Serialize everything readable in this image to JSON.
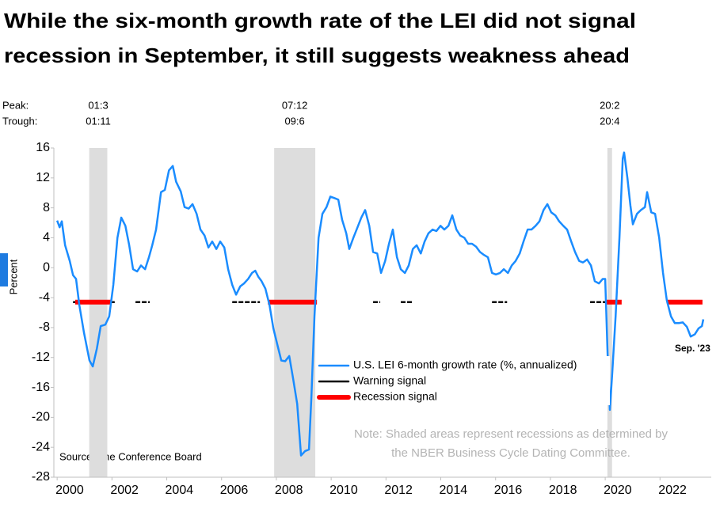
{
  "chart_data": {
    "type": "line",
    "title": [
      "While the six-month growth rate of the LEI did not signal",
      "recession in September, it still suggests weakness ahead"
    ],
    "y_label": "Percent",
    "peak_label": "Peak:",
    "trough_label": "Trough:",
    "x": [
      2000.0,
      2000.09,
      2000.17,
      2000.29,
      2000.46,
      2000.58,
      2000.69,
      2000.81,
      2000.98,
      2001.18,
      2001.3,
      2001.45,
      2001.59,
      2001.76,
      2001.9,
      2002.05,
      2002.2,
      2002.34,
      2002.49,
      2002.63,
      2002.77,
      2002.92,
      2003.06,
      2003.21,
      2003.35,
      2003.47,
      2003.61,
      2003.79,
      2003.93,
      2004.08,
      2004.22,
      2004.34,
      2004.51,
      2004.65,
      2004.8,
      2004.94,
      2005.09,
      2005.23,
      2005.38,
      2005.52,
      2005.66,
      2005.81,
      2005.95,
      2006.1,
      2006.24,
      2006.39,
      2006.53,
      2006.68,
      2006.82,
      2006.97,
      2007.11,
      2007.23,
      2007.34,
      2007.46,
      2007.6,
      2007.75,
      2007.89,
      2008.03,
      2008.18,
      2008.32,
      2008.47,
      2008.61,
      2008.76,
      2008.9,
      2009.05,
      2009.19,
      2009.28,
      2009.39,
      2009.54,
      2009.68,
      2009.83,
      2009.97,
      2010.12,
      2010.26,
      2010.4,
      2010.55,
      2010.66,
      2010.81,
      2010.95,
      2011.1,
      2011.24,
      2011.39,
      2011.53,
      2011.68,
      2011.82,
      2011.97,
      2012.11,
      2012.25,
      2012.4,
      2012.54,
      2012.69,
      2012.83,
      2012.98,
      2013.12,
      2013.27,
      2013.41,
      2013.55,
      2013.7,
      2013.84,
      2013.99,
      2014.13,
      2014.28,
      2014.42,
      2014.57,
      2014.71,
      2014.86,
      2015.0,
      2015.14,
      2015.29,
      2015.43,
      2015.58,
      2015.72,
      2015.87,
      2016.01,
      2016.16,
      2016.3,
      2016.45,
      2016.59,
      2016.73,
      2016.88,
      2017.02,
      2017.17,
      2017.31,
      2017.46,
      2017.6,
      2017.75,
      2017.89,
      2018.03,
      2018.18,
      2018.32,
      2018.47,
      2018.61,
      2018.76,
      2018.9,
      2019.05,
      2019.19,
      2019.34,
      2019.48,
      2019.62,
      2019.77,
      2019.91,
      2020.0,
      2020.09,
      2020.17,
      2020.26,
      2020.38,
      2020.52,
      2020.64,
      2020.69,
      2020.81,
      2020.92,
      2021.01,
      2021.16,
      2021.3,
      2021.45,
      2021.53,
      2021.68,
      2021.82,
      2021.97,
      2022.11,
      2022.25,
      2022.4,
      2022.54,
      2022.69,
      2022.83,
      2022.98,
      2023.12,
      2023.27,
      2023.41,
      2023.53,
      2023.58
    ],
    "series": [
      {
        "name": "U.S. LEI 6-month growth rate (%, annualized)",
        "color": "#1a8cff",
        "values": [
          6.3,
          5.4,
          6.2,
          3.0,
          0.9,
          -1.0,
          -1.5,
          -5.0,
          -8.7,
          -12.4,
          -13.2,
          -10.8,
          -7.8,
          -7.6,
          -6.5,
          -2.3,
          4.0,
          6.7,
          5.6,
          3.0,
          -0.2,
          -0.5,
          0.3,
          -0.2,
          1.4,
          3.0,
          5.1,
          10.1,
          10.4,
          13.0,
          13.6,
          11.5,
          10.2,
          8.1,
          7.9,
          8.5,
          7.2,
          5.1,
          4.3,
          2.7,
          3.5,
          2.5,
          3.5,
          2.7,
          -0.2,
          -2.3,
          -3.6,
          -2.5,
          -2.1,
          -1.5,
          -0.7,
          -0.4,
          -1.2,
          -1.8,
          -2.8,
          -5.0,
          -8.1,
          -10.2,
          -12.4,
          -12.5,
          -11.8,
          -14.8,
          -18.2,
          -25.1,
          -24.5,
          -24.3,
          -17.1,
          -6.5,
          4.0,
          7.2,
          8.1,
          9.5,
          9.3,
          9.1,
          6.4,
          4.6,
          2.5,
          4.0,
          5.3,
          6.7,
          7.7,
          5.6,
          2.1,
          1.9,
          -0.7,
          0.9,
          3.2,
          5.1,
          1.4,
          -0.2,
          -0.7,
          0.3,
          2.5,
          3.0,
          1.9,
          3.5,
          4.6,
          5.1,
          4.9,
          5.6,
          5.1,
          5.6,
          7.0,
          5.1,
          4.3,
          4.0,
          3.2,
          3.2,
          2.8,
          2.1,
          1.7,
          1.4,
          -0.7,
          -0.9,
          -0.7,
          -0.2,
          -0.7,
          0.3,
          0.9,
          1.9,
          3.5,
          5.1,
          5.1,
          5.6,
          6.2,
          7.7,
          8.5,
          7.4,
          7.0,
          6.2,
          5.6,
          5.1,
          3.5,
          2.1,
          0.9,
          0.7,
          1.1,
          0.3,
          -1.8,
          -2.1,
          -1.5,
          -1.5,
          -11.8,
          -19.0,
          -13.9,
          -6.5,
          4.0,
          14.6,
          15.4,
          12.0,
          8.3,
          5.8,
          7.2,
          7.7,
          8.1,
          10.1,
          7.4,
          7.2,
          4.0,
          -0.7,
          -4.4,
          -6.5,
          -7.4,
          -7.4,
          -7.3,
          -7.9,
          -9.2,
          -8.9,
          -8.1,
          -7.8,
          -6.9
        ]
      }
    ],
    "signals": [
      {
        "name": "Warning signal",
        "color": "#000000",
        "level": -4.6,
        "periods": [
          [
            2000.58,
            2002.1
          ],
          [
            2002.86,
            2003.38
          ],
          [
            2006.39,
            2007.4
          ],
          [
            2011.53,
            2011.79
          ],
          [
            2012.54,
            2012.95
          ],
          [
            2015.87,
            2016.42
          ],
          [
            2019.45,
            2020.03
          ]
        ]
      },
      {
        "name": "Recession signal",
        "color": "#ff0000",
        "level": -4.6,
        "periods": [
          [
            2000.66,
            2001.97
          ],
          [
            2007.69,
            2009.48
          ],
          [
            2020.03,
            2020.6
          ],
          [
            2022.28,
            2023.55
          ]
        ]
      }
    ],
    "recessions": {
      "color": "#dddddd",
      "periods": [
        {
          "start": 2001.17,
          "end": 2001.83,
          "peak": "01:3",
          "trough": "01:11"
        },
        {
          "start": 2007.92,
          "end": 2009.42,
          "peak": "07:12",
          "trough": "09:6"
        },
        {
          "start": 2020.08,
          "end": 2020.25,
          "peak": "20:2",
          "trough": "20:4"
        }
      ]
    },
    "xlim": [
      1999.88,
      2023.87
    ],
    "xticks": [
      2000,
      2002,
      2004,
      2006,
      2008,
      2010,
      2012,
      2014,
      2016,
      2018,
      2020,
      2022
    ],
    "ylim": [
      -28,
      16
    ],
    "yticks": [
      -28,
      -24,
      -20,
      -16,
      -12,
      -8,
      -4,
      0,
      4,
      8,
      12,
      16
    ],
    "end_label": "Sep. '23",
    "note": [
      "Note: Shaded areas represent recessions as determined by",
      "the NBER Business Cycle Dating Committee."
    ],
    "source": "Source: The Conference Board"
  }
}
